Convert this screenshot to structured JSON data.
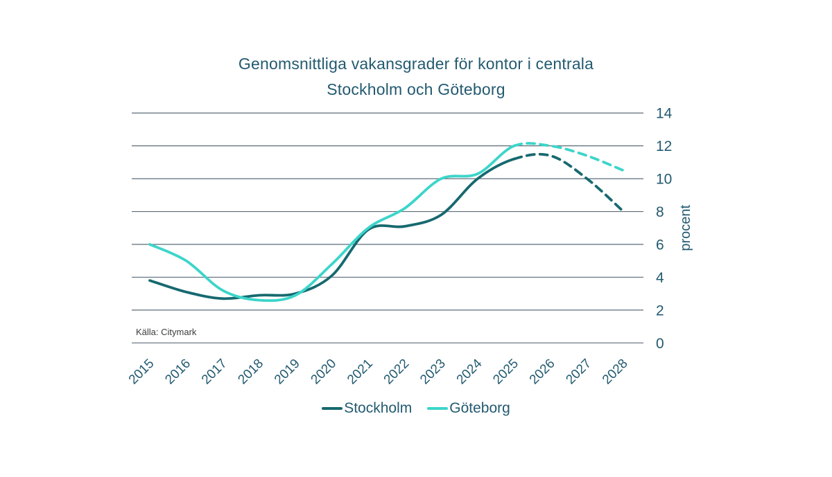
{
  "title": {
    "line1": "Genomsnittliga vakansgrader för kontor i centrala",
    "line2": "Stockholm och Göteborg"
  },
  "source": {
    "label": "Källa: Citymark"
  },
  "legend": {
    "items": [
      {
        "label": "Stockholm",
        "color": "#16696f"
      },
      {
        "label": "Göteborg",
        "color": "#3cd5ca"
      }
    ]
  },
  "colors": {
    "text": "#235a70",
    "grid": "#5c6c79",
    "source_text": "#3b3b3b",
    "background": "#ffffff",
    "stockholm_line": "#16696f",
    "goteborg_line": "#3cd5ca"
  },
  "chart_data": {
    "type": "line",
    "title": "Genomsnittliga vakansgrader för kontor i centrala Stockholm och Göteborg",
    "xlabel": "",
    "ylabel": "procent",
    "categories": [
      "2015",
      "2016",
      "2017",
      "2018",
      "2019",
      "2020",
      "2021",
      "2022",
      "2023",
      "2024",
      "2025",
      "2026",
      "2027",
      "2028"
    ],
    "series": [
      {
        "name": "Stockholm",
        "color": "#16696f",
        "values": [
          3.8,
          3.1,
          2.7,
          2.9,
          3.0,
          4.1,
          6.9,
          7.1,
          7.8,
          10.0,
          11.2,
          11.4,
          10.0,
          8.0
        ]
      },
      {
        "name": "Göteborg",
        "color": "#3cd5ca",
        "values": [
          6.0,
          5.0,
          3.2,
          2.6,
          2.9,
          4.8,
          7.0,
          8.2,
          10.0,
          10.3,
          12.0,
          12.0,
          11.4,
          10.5
        ]
      }
    ],
    "ylim": [
      0,
      14
    ],
    "yticks": [
      0,
      2,
      4,
      6,
      8,
      10,
      12,
      14
    ],
    "grid": "horizontal",
    "legend_position": "bottom",
    "forecast_from": "2025",
    "forecast_style": "dashed",
    "source": "Källa: Citymark"
  }
}
